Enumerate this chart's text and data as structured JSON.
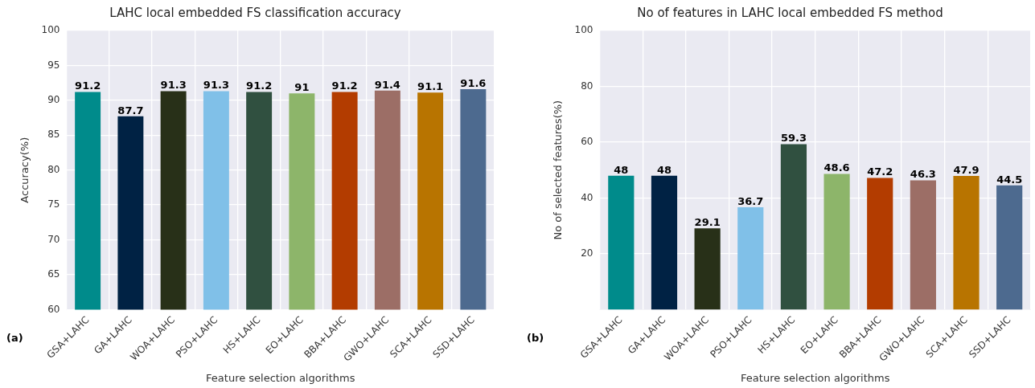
{
  "chart_data": [
    {
      "type": "bar",
      "title": "LAHC local embedded FS classification accuracy",
      "xlabel": "Feature selection algorithms",
      "ylabel": "Accuracy(%)",
      "categories": [
        "GSA+LAHC",
        "GA+LAHC",
        "WOA+LAHC",
        "PSO+LAHC",
        "HS+LAHC",
        "EO+LAHC",
        "BBA+LAHC",
        "GWO+LAHC",
        "SCA+LAHC",
        "SSD+LAHC"
      ],
      "values": [
        91.2,
        87.7,
        91.3,
        91.3,
        91.2,
        91,
        91.2,
        91.4,
        91.1,
        91.6
      ],
      "colors": [
        "#008b8b",
        "#002244",
        "#283018",
        "#80c0e8",
        "#305040",
        "#8db56a",
        "#b33c00",
        "#9c6e66",
        "#b87400",
        "#4d6a8f"
      ],
      "ylim": [
        60,
        100
      ],
      "yticks": [
        60,
        65,
        70,
        75,
        80,
        85,
        90,
        95,
        100
      ],
      "grid": true,
      "data_labels": true,
      "annotations": [
        "(a)"
      ]
    },
    {
      "type": "bar",
      "title": "No of features in LAHC local embedded FS method",
      "xlabel": "Feature selection algorithms",
      "ylabel": "No of selected features(%)",
      "categories": [
        "GSA+LAHC",
        "GA+LAHC",
        "WOA+LAHC",
        "PSO+LAHC",
        "HS+LAHC",
        "EO+LAHC",
        "BBA+LAHC",
        "GWO+LAHC",
        "SCA+LAHC",
        "SSD+LAHC"
      ],
      "values": [
        48,
        48,
        29.1,
        36.7,
        59.3,
        48.6,
        47.2,
        46.3,
        47.9,
        44.5
      ],
      "colors": [
        "#008b8b",
        "#002244",
        "#283018",
        "#80c0e8",
        "#305040",
        "#8db56a",
        "#b33c00",
        "#9c6e66",
        "#b87400",
        "#4d6a8f"
      ],
      "ylim": [
        0,
        100
      ],
      "yticks": [
        20,
        40,
        60,
        80,
        100
      ],
      "grid": true,
      "data_labels": true,
      "annotations": [
        "(b)"
      ]
    }
  ]
}
